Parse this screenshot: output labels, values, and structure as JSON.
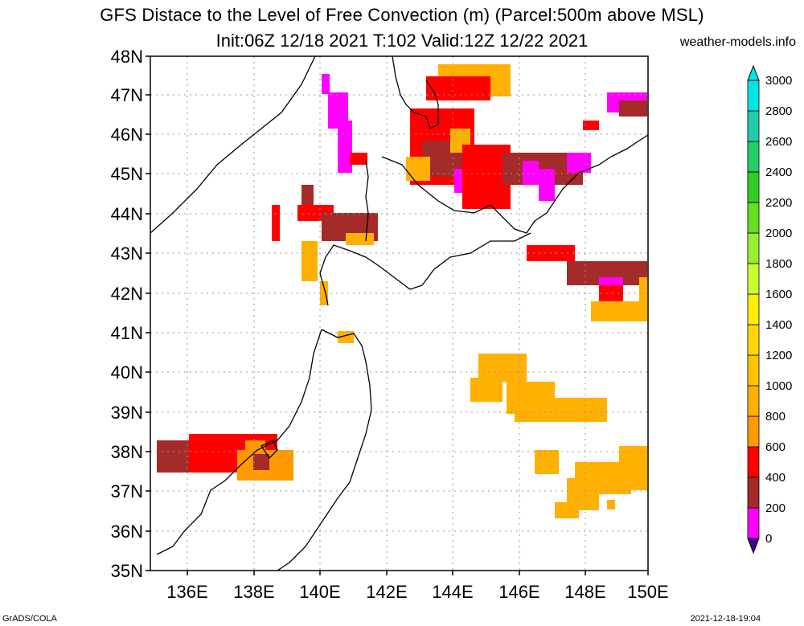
{
  "header": {
    "title": "GFS Distace to the Level of Free Convection (m) (Parcel:500m above MSL)",
    "subtitle": "Init:06Z 12/18 2021 T:102 Valid:12Z 12/22 2021",
    "site": "weather-models.info"
  },
  "footer": {
    "left": "GrADS/COLA",
    "right": "2021-12-18-19:04"
  },
  "map": {
    "lat_labels": [
      "48N",
      "47N",
      "46N",
      "45N",
      "44N",
      "43N",
      "42N",
      "41N",
      "40N",
      "39N",
      "38N",
      "37N",
      "36N",
      "35N"
    ],
    "lon_labels": [
      "136E",
      "138E",
      "140E",
      "142E",
      "144E",
      "146E",
      "148E",
      "150E"
    ],
    "lat_range": [
      35,
      48
    ],
    "lon_range": [
      135,
      150
    ]
  },
  "colorbar": {
    "labels": [
      "0",
      "200",
      "400",
      "600",
      "800",
      "1000",
      "1200",
      "1400",
      "1600",
      "1800",
      "2000",
      "2200",
      "2400",
      "2600",
      "2800",
      "3000"
    ],
    "colors": [
      "#3c0096",
      "#ff00ff",
      "#a52a2a",
      "#ff0000",
      "#ff9900",
      "#ffb000",
      "#ffc400",
      "#ffd700",
      "#ffee00",
      "#ccff33",
      "#99ee33",
      "#66dd22",
      "#33cc22",
      "#22cc66",
      "#22ccaa",
      "#00e6e6"
    ]
  }
}
